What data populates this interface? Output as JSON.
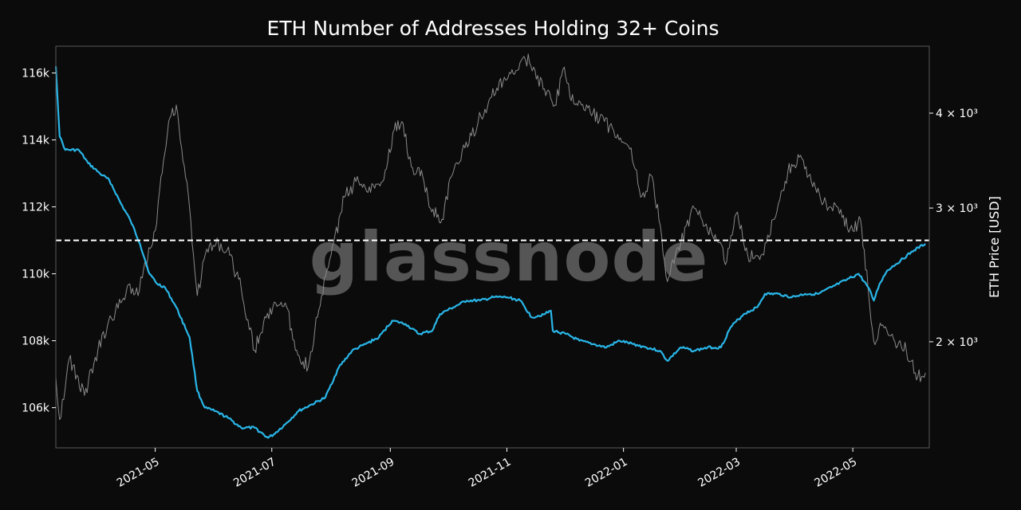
{
  "chart_data": {
    "type": "line",
    "title": "ETH Number of Addresses Holding 32+ Coins",
    "watermark": "glassnode",
    "x_ticks": [
      "2021-05",
      "2021-07",
      "2021-09",
      "2021-11",
      "2022-01",
      "2022-03",
      "2022-05"
    ],
    "xlim": [
      "2021-03-10",
      "2022-06-10"
    ],
    "y_left": {
      "label": "",
      "ticks": [
        "106k",
        "108k",
        "110k",
        "112k",
        "114k",
        "116k"
      ],
      "lim": [
        104800,
        116800
      ]
    },
    "y_right": {
      "label": "ETH Price [USD]",
      "scale": "log",
      "ticks": [
        "2 × 10³",
        "3 × 10³",
        "4 × 10³"
      ],
      "lim": [
        1450,
        4900
      ]
    },
    "reference_line": {
      "value": 111000,
      "axis": "left",
      "style": "dashed",
      "color": "#ffffff"
    },
    "grid": false,
    "colors": {
      "addresses": "#29b6e8",
      "price": "#8a8a8a",
      "background": "#0b0b0b",
      "frame": "#5a5a5a"
    },
    "series": [
      {
        "axis": "left",
        "color": "#29b6e8",
        "x": [
          "2021-03-10",
          "2021-03-12",
          "2021-03-15",
          "2021-03-22",
          "2021-03-27",
          "2021-04-02",
          "2021-04-07",
          "2021-04-13",
          "2021-04-18",
          "2021-04-23",
          "2021-04-28",
          "2021-05-02",
          "2021-05-06",
          "2021-05-12",
          "2021-05-19",
          "2021-05-23",
          "2021-05-27",
          "2021-06-01",
          "2021-06-08",
          "2021-06-15",
          "2021-06-22",
          "2021-06-29",
          "2021-07-02",
          "2021-07-08",
          "2021-07-15",
          "2021-07-22",
          "2021-07-29",
          "2021-08-05",
          "2021-08-12",
          "2021-08-19",
          "2021-08-26",
          "2021-09-02",
          "2021-09-09",
          "2021-09-16",
          "2021-09-23",
          "2021-09-27",
          "2021-10-04",
          "2021-10-11",
          "2021-10-18",
          "2021-10-25",
          "2021-11-01",
          "2021-11-08",
          "2021-11-14",
          "2021-11-21",
          "2021-11-24",
          "2021-11-25",
          "2021-12-02",
          "2021-12-09",
          "2021-12-16",
          "2021-12-23",
          "2021-12-30",
          "2022-01-06",
          "2022-01-13",
          "2022-01-20",
          "2022-01-24",
          "2022-01-31",
          "2022-02-07",
          "2022-02-14",
          "2022-02-21",
          "2022-02-26",
          "2022-03-05",
          "2022-03-12",
          "2022-03-16",
          "2022-03-23",
          "2022-03-30",
          "2022-04-06",
          "2022-04-13",
          "2022-04-20",
          "2022-04-27",
          "2022-05-04",
          "2022-05-09",
          "2022-05-12",
          "2022-05-15",
          "2022-05-19",
          "2022-05-26",
          "2022-06-02",
          "2022-06-08"
        ],
        "values": [
          116200,
          114100,
          113700,
          113700,
          113300,
          113000,
          112800,
          112100,
          111600,
          110900,
          110000,
          109700,
          109600,
          109000,
          108100,
          106500,
          106000,
          105900,
          105700,
          105400,
          105400,
          105100,
          105200,
          105500,
          105900,
          106100,
          106300,
          107200,
          107700,
          107900,
          108100,
          108600,
          108500,
          108200,
          108300,
          108800,
          109000,
          109200,
          109200,
          109300,
          109300,
          109200,
          108700,
          108800,
          108900,
          108300,
          108200,
          108000,
          107900,
          107800,
          108000,
          107900,
          107800,
          107700,
          107400,
          107800,
          107700,
          107800,
          107800,
          108400,
          108800,
          109000,
          109400,
          109400,
          109300,
          109400,
          109400,
          109600,
          109800,
          110000,
          109600,
          109200,
          109700,
          110100,
          110400,
          110700,
          110900
        ]
      },
      {
        "axis": "right",
        "color": "#8a8a8a",
        "x": [
          "2021-03-10",
          "2021-03-12",
          "2021-03-17",
          "2021-03-25",
          "2021-04-01",
          "2021-04-06",
          "2021-04-13",
          "2021-04-17",
          "2021-04-22",
          "2021-04-25",
          "2021-05-01",
          "2021-05-04",
          "2021-05-08",
          "2021-05-12",
          "2021-05-19",
          "2021-05-23",
          "2021-05-28",
          "2021-06-03",
          "2021-06-09",
          "2021-06-15",
          "2021-06-22",
          "2021-06-28",
          "2021-07-03",
          "2021-07-08",
          "2021-07-14",
          "2021-07-20",
          "2021-07-27",
          "2021-08-01",
          "2021-08-08",
          "2021-08-14",
          "2021-08-21",
          "2021-08-28",
          "2021-09-03",
          "2021-09-07",
          "2021-09-12",
          "2021-09-18",
          "2021-09-22",
          "2021-09-28",
          "2021-10-03",
          "2021-10-10",
          "2021-10-17",
          "2021-10-24",
          "2021-10-30",
          "2021-11-05",
          "2021-11-10",
          "2021-11-15",
          "2021-11-20",
          "2021-11-26",
          "2021-12-01",
          "2021-12-04",
          "2021-12-10",
          "2021-12-16",
          "2021-12-22",
          "2021-12-29",
          "2022-01-05",
          "2022-01-10",
          "2022-01-16",
          "2022-01-21",
          "2022-01-24",
          "2022-01-31",
          "2022-02-07",
          "2022-02-14",
          "2022-02-20",
          "2022-02-24",
          "2022-03-01",
          "2022-03-07",
          "2022-03-14",
          "2022-03-21",
          "2022-03-28",
          "2022-04-03",
          "2022-04-10",
          "2022-04-17",
          "2022-04-24",
          "2022-05-01",
          "2022-05-05",
          "2022-05-09",
          "2022-05-12",
          "2022-05-16",
          "2022-05-23",
          "2022-05-29",
          "2022-06-04",
          "2022-06-08"
        ],
        "values": [
          1800,
          1580,
          1900,
          1700,
          1950,
          2100,
          2250,
          2380,
          2300,
          2500,
          2800,
          3300,
          3900,
          4100,
          3000,
          2300,
          2650,
          2700,
          2600,
          2350,
          1950,
          2150,
          2250,
          2250,
          1950,
          1850,
          2300,
          2600,
          3100,
          3250,
          3200,
          3250,
          3800,
          3900,
          3400,
          3300,
          3000,
          2900,
          3300,
          3600,
          3900,
          4200,
          4400,
          4500,
          4750,
          4600,
          4300,
          4100,
          4600,
          4200,
          4100,
          4000,
          3900,
          3750,
          3600,
          3100,
          3300,
          2750,
          2400,
          2700,
          3000,
          2800,
          2700,
          2550,
          2950,
          2600,
          2600,
          2900,
          3350,
          3500,
          3200,
          3050,
          2950,
          2800,
          2900,
          2350,
          2000,
          2100,
          2000,
          1950,
          1800,
          1820
        ]
      }
    ]
  }
}
